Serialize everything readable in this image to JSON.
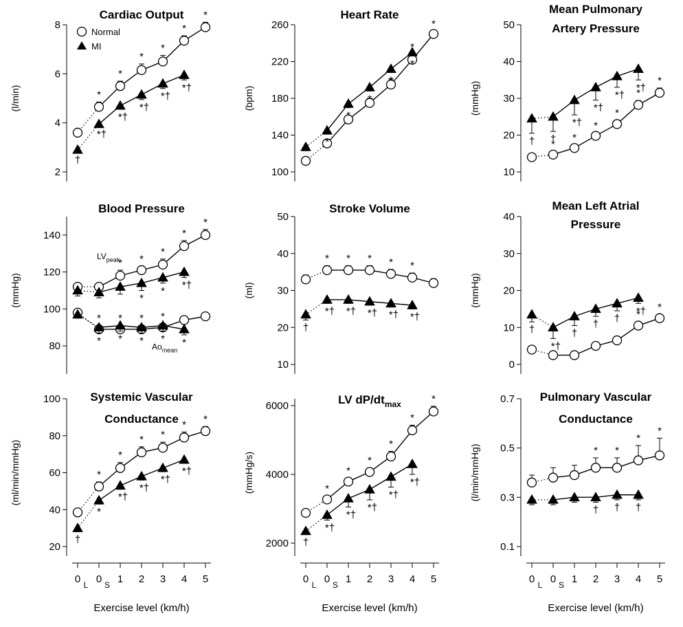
{
  "figure": {
    "xlabel": "Exercise level (km/h)",
    "x_ticks": [
      "0L",
      "0S",
      "1",
      "2",
      "3",
      "4",
      "5"
    ],
    "x_tick_main": [
      "0",
      "0",
      "1",
      "2",
      "3",
      "4",
      "5"
    ],
    "x_tick_sub": [
      "L",
      "S",
      "",
      "",
      "",
      "",
      ""
    ]
  },
  "legend": {
    "normal": "Normal",
    "mi": "MI"
  },
  "chart_data": [
    {
      "type": "line",
      "title": [
        "Cardiac Output"
      ],
      "ylabel": "(l/min)",
      "ylim": [
        2,
        8
      ],
      "yticks": [
        2,
        4,
        6,
        8
      ],
      "x": [
        "0L",
        "0S",
        "1",
        "2",
        "3",
        "4",
        "5"
      ],
      "series": [
        {
          "name": "Normal",
          "values": [
            3.6,
            4.65,
            5.5,
            6.15,
            6.5,
            7.35,
            7.9
          ],
          "errors": [
            0.15,
            0.2,
            0.2,
            0.25,
            0.25,
            0.2,
            0.2
          ],
          "marks": [
            "",
            "*",
            "*",
            "*",
            "*",
            "*",
            "*"
          ]
        },
        {
          "name": "MI",
          "values": [
            2.9,
            3.95,
            4.7,
            5.15,
            5.6,
            5.95,
            null
          ],
          "errors": [
            0.1,
            0.1,
            0.15,
            0.2,
            0.2,
            0.2,
            null
          ],
          "marks": [
            "†",
            "*†",
            "*†",
            "*†",
            "*†",
            "*†",
            ""
          ]
        }
      ]
    },
    {
      "type": "line",
      "title": [
        "Heart Rate"
      ],
      "ylabel": "(bpm)",
      "ylim": [
        100,
        260
      ],
      "yticks": [
        100,
        140,
        180,
        220,
        260
      ],
      "x": [
        "0L",
        "0S",
        "1",
        "2",
        "3",
        "4",
        "5"
      ],
      "series": [
        {
          "name": "Normal",
          "values": [
            112,
            131,
            157,
            175,
            195,
            222,
            250
          ],
          "errors": [
            4,
            4,
            4,
            5,
            6,
            6,
            3
          ],
          "marks": [
            "",
            "*",
            "*",
            "*",
            "*",
            "*",
            "*"
          ]
        },
        {
          "name": "MI",
          "values": [
            127,
            145,
            174,
            192,
            212,
            230,
            null
          ],
          "errors": [
            4,
            4,
            4,
            4,
            4,
            4,
            null
          ],
          "marks": [
            "",
            "*",
            "*",
            "*",
            "*",
            "*",
            ""
          ]
        }
      ]
    },
    {
      "type": "line",
      "title": [
        "Mean Pulmonary",
        "Artery Pressure"
      ],
      "ylabel": "(mmHg)",
      "ylim": [
        10,
        50
      ],
      "yticks": [
        10,
        20,
        30,
        40,
        50
      ],
      "x": [
        "0L",
        "0S",
        "1",
        "2",
        "3",
        "4",
        "5"
      ],
      "series": [
        {
          "name": "Normal",
          "values": [
            14,
            14.7,
            16.5,
            19.8,
            23,
            28.2,
            31.5
          ],
          "errors": [
            0.6,
            0.8,
            0.8,
            0.8,
            1,
            1.2,
            1.3
          ],
          "marks": [
            "",
            "*",
            "*",
            "*",
            "*",
            "*",
            "*"
          ]
        },
        {
          "name": "MI",
          "values": [
            24.5,
            25,
            29.5,
            33,
            36,
            38,
            null
          ],
          "errors": [
            4,
            4,
            4,
            3.5,
            3,
            3,
            null
          ],
          "marks": [
            "†",
            "†",
            "*†",
            "*†",
            "*†",
            "*†",
            ""
          ]
        }
      ]
    },
    {
      "type": "line",
      "title": [
        "Blood Pressure"
      ],
      "ylabel": "(mmHg)",
      "ylim": [
        70,
        150
      ],
      "yticks": [
        80,
        100,
        120,
        140
      ],
      "x": [
        "0L",
        "0S",
        "1",
        "2",
        "3",
        "4",
        "5"
      ],
      "series_labels": {
        "upper": "LV",
        "upper_sub": "peak",
        "lower": "Ao",
        "lower_sub": "mean"
      },
      "series": [
        {
          "name": "Normal LVpeak",
          "values": [
            112,
            112,
            118,
            121,
            124,
            134,
            140
          ],
          "errors": [
            2,
            2,
            3,
            2,
            3,
            3,
            3
          ],
          "marks": [
            "",
            "",
            "*",
            "*",
            "*",
            "*",
            "*"
          ]
        },
        {
          "name": "MI LVpeak",
          "values": [
            110,
            109,
            112,
            114,
            117,
            120,
            null
          ],
          "errors": [
            3,
            3,
            4,
            4,
            3,
            3,
            null
          ],
          "marks": [
            "",
            "",
            "",
            "*",
            "*",
            "*†",
            ""
          ]
        },
        {
          "name": "Normal Aomean",
          "values": [
            98,
            89,
            89,
            89,
            90,
            94,
            96
          ],
          "errors": [
            2,
            2,
            2,
            2,
            2,
            2,
            2
          ],
          "marks": [
            "",
            "*",
            "*",
            "*",
            "*",
            "",
            ""
          ]
        },
        {
          "name": "MI Aomean",
          "values": [
            97,
            90,
            91,
            90,
            91,
            89,
            null
          ],
          "errors": [
            2,
            3,
            3,
            3,
            3,
            3,
            null
          ],
          "marks": [
            "",
            "*",
            "*",
            "*",
            "*",
            "*",
            ""
          ]
        }
      ]
    },
    {
      "type": "line",
      "title": [
        "Stroke Volume"
      ],
      "ylabel": "(ml)",
      "ylim": [
        10,
        50
      ],
      "yticks": [
        10,
        20,
        30,
        40,
        50
      ],
      "x": [
        "0L",
        "0S",
        "1",
        "2",
        "3",
        "4",
        "5"
      ],
      "series": [
        {
          "name": "Normal",
          "values": [
            33,
            35.5,
            35.5,
            35.5,
            34.5,
            33.5,
            32
          ],
          "errors": [
            1.2,
            1.2,
            1.2,
            1.2,
            1.2,
            1.2,
            1.2
          ],
          "marks": [
            "",
            "*",
            "*",
            "*",
            "*",
            "*",
            ""
          ]
        },
        {
          "name": "MI",
          "values": [
            23.5,
            27.5,
            27.5,
            27,
            26.5,
            26,
            null
          ],
          "errors": [
            1.5,
            1,
            1,
            1,
            1,
            1,
            null
          ],
          "marks": [
            "†",
            "*†",
            "*†",
            "*†",
            "*†",
            "*†",
            ""
          ]
        }
      ]
    },
    {
      "type": "line",
      "title": [
        "Mean Left Atrial",
        "Pressure"
      ],
      "ylabel": "(mmHg)",
      "ylim": [
        0,
        40
      ],
      "yticks": [
        0,
        10,
        20,
        30,
        40
      ],
      "x": [
        "0L",
        "0S",
        "1",
        "2",
        "3",
        "4",
        "5"
      ],
      "series": [
        {
          "name": "Normal",
          "values": [
            4,
            2.5,
            2.5,
            5,
            6.5,
            10.5,
            12.5
          ],
          "errors": [
            0.5,
            0.8,
            0.5,
            0.6,
            0.8,
            1,
            1
          ],
          "marks": [
            "",
            "",
            "",
            "",
            "",
            "*",
            "*"
          ]
        },
        {
          "name": "MI",
          "values": [
            13.5,
            10,
            13,
            15,
            16.5,
            18,
            null
          ],
          "errors": [
            2,
            3,
            2.5,
            2,
            2,
            1.5,
            null
          ],
          "marks": [
            "†",
            "*†",
            "†",
            "†",
            "†",
            "*†",
            ""
          ]
        }
      ]
    },
    {
      "type": "line",
      "title": [
        "Systemic Vascular",
        "Conductance"
      ],
      "ylabel": "(ml/min/mmHg)",
      "ylim": [
        20,
        100
      ],
      "yticks": [
        20,
        40,
        60,
        80,
        100
      ],
      "x": [
        "0L",
        "0S",
        "1",
        "2",
        "3",
        "4",
        "5"
      ],
      "series": [
        {
          "name": "Normal",
          "values": [
            38.5,
            52.5,
            62.5,
            71,
            73.5,
            79,
            82.5
          ],
          "errors": [
            1.5,
            2.5,
            3,
            3,
            3,
            3,
            2.5
          ],
          "marks": [
            "",
            "*",
            "*",
            "*",
            "*",
            "*",
            "*"
          ]
        },
        {
          "name": "MI",
          "values": [
            30,
            45,
            53,
            58,
            62.5,
            67,
            null
          ],
          "errors": [
            2,
            2,
            2,
            2,
            2,
            2,
            null
          ],
          "marks": [
            "†",
            "*",
            "*†",
            "*†",
            "*†",
            "*†",
            ""
          ]
        }
      ]
    },
    {
      "type": "line",
      "title": [
        "LV dP/dt"
      ],
      "title_sub": "max",
      "ylabel": "(mmHg/s)",
      "ylim": [
        1900,
        6200
      ],
      "yticks": [
        2000,
        4000,
        6000
      ],
      "x": [
        "0L",
        "0S",
        "1",
        "2",
        "3",
        "4",
        "5"
      ],
      "series": [
        {
          "name": "Normal",
          "values": [
            2880,
            3270,
            3790,
            4070,
            4520,
            5280,
            5830
          ],
          "errors": [
            80,
            100,
            100,
            120,
            150,
            150,
            150
          ],
          "marks": [
            "",
            "*",
            "*",
            "*",
            "*",
            "*",
            "*"
          ]
        },
        {
          "name": "MI",
          "values": [
            2350,
            2820,
            3300,
            3560,
            3930,
            4300,
            null
          ],
          "errors": [
            100,
            150,
            250,
            300,
            300,
            300,
            null
          ],
          "marks": [
            "†",
            "*†",
            "*†",
            "*†",
            "*†",
            "*†",
            ""
          ]
        }
      ]
    },
    {
      "type": "line",
      "title": [
        "Pulmonary Vascular",
        "Conductance"
      ],
      "ylabel": "(l/min/mmHg)",
      "ylim": [
        0.1,
        0.7
      ],
      "yticks": [
        0.1,
        0.3,
        0.5,
        0.7
      ],
      "x": [
        "0L",
        "0S",
        "1",
        "2",
        "3",
        "4",
        "5"
      ],
      "series": [
        {
          "name": "Normal",
          "values": [
            0.36,
            0.38,
            0.39,
            0.42,
            0.42,
            0.45,
            0.47
          ],
          "errors": [
            0.03,
            0.04,
            0.04,
            0.04,
            0.04,
            0.06,
            0.07
          ],
          "marks": [
            "",
            "",
            "",
            "*",
            "*",
            "*",
            "*"
          ]
        },
        {
          "name": "MI",
          "values": [
            0.29,
            0.29,
            0.3,
            0.3,
            0.31,
            0.31,
            null
          ],
          "errors": [
            0.02,
            0.02,
            0.02,
            0.02,
            0.02,
            0.02,
            null
          ],
          "marks": [
            "",
            "",
            "",
            "†",
            "†",
            "†",
            ""
          ]
        }
      ]
    }
  ]
}
